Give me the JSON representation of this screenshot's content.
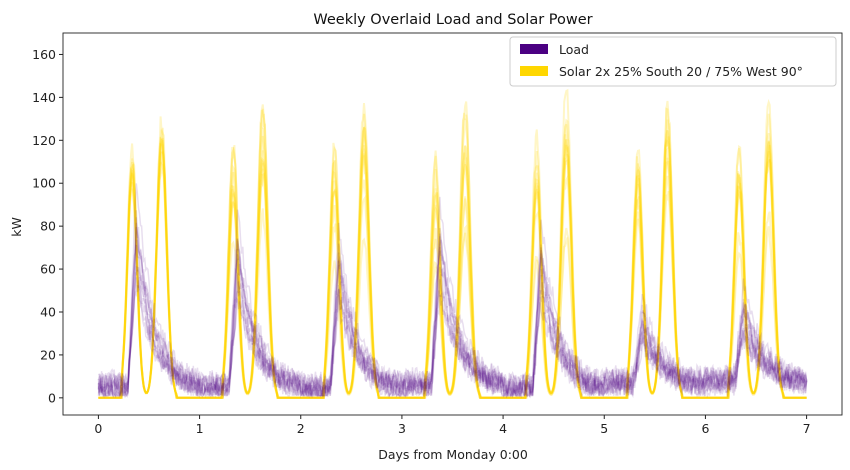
{
  "chart_data": {
    "type": "line",
    "title": "Weekly Overlaid Load and Solar Power",
    "xlabel": "Days from Monday 0:00",
    "ylabel": "kW",
    "xlim": [
      -0.35,
      7.35
    ],
    "ylim": [
      -8,
      170
    ],
    "xticks": [
      0,
      1,
      2,
      3,
      4,
      5,
      6,
      7
    ],
    "xtick_labels": [
      "0",
      "1",
      "2",
      "3",
      "4",
      "5",
      "6",
      "7"
    ],
    "yticks": [
      0,
      20,
      40,
      60,
      80,
      100,
      120,
      140,
      160
    ],
    "ytick_labels": [
      "0",
      "20",
      "40",
      "60",
      "80",
      "100",
      "120",
      "140",
      "160"
    ],
    "grid": false,
    "legend_position": "top-right",
    "legend": [
      {
        "label": "Load",
        "color": "#4B0082"
      },
      {
        "label": "Solar 2x 25% South 20 / 75% West 90°",
        "color": "#FFD700"
      }
    ],
    "overlay_weeks": 12,
    "series": [
      {
        "name": "Load",
        "color": "#4B0082",
        "daily_peak_kw": [
          85,
          75,
          70,
          78,
          72,
          40,
          45
        ],
        "peak_hour": 9,
        "night_base_kw": [
          5,
          5,
          4,
          6,
          4,
          7,
          8
        ]
      },
      {
        "name": "Solar 2x 25% South 20 / 75% West 90°",
        "color": "#FFD700",
        "first_peak_kw": [
          125,
          120,
          118,
          115,
          118,
          118,
          118
        ],
        "second_peak_kw": [
          140,
          138,
          135,
          140,
          140,
          140,
          135
        ],
        "first_peak_hour": 8,
        "second_peak_hour": 15,
        "sunrise_hour": 5.5,
        "sunset_hour": 18.5
      }
    ]
  }
}
